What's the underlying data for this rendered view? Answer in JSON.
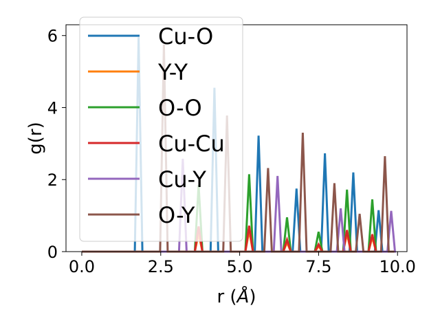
{
  "chart_data": {
    "type": "line",
    "xlabel_main": "r (",
    "xlabel_unit": "Å",
    "xlabel_end": ")",
    "ylabel": "g(r)",
    "xlim": [
      -0.5,
      10.3
    ],
    "ylim": [
      0,
      6.3
    ],
    "xticks": [
      0.0,
      2.5,
      5.0,
      7.5,
      10.0
    ],
    "xtick_labels": [
      "0.0",
      "2.5",
      "5.0",
      "7.5",
      "10.0"
    ],
    "yticks": [
      0,
      2,
      4,
      6
    ],
    "ytick_labels": [
      "0",
      "2",
      "4",
      "6"
    ],
    "legend_position": "upper-left",
    "peak_halfwidth": 0.12,
    "x_end": 9.9,
    "series": [
      {
        "name": "Cu-O",
        "color": "#1f77b4",
        "peaks": [
          [
            1.8,
            5.95
          ],
          [
            4.2,
            4.55
          ],
          [
            5.6,
            3.22
          ],
          [
            6.8,
            1.75
          ],
          [
            7.7,
            2.73
          ],
          [
            8.6,
            2.2
          ],
          [
            9.4,
            1.15
          ]
        ]
      },
      {
        "name": "Y-Y",
        "color": "#ff7f0e",
        "peaks": [
          [
            3.7,
            0.5
          ],
          [
            5.3,
            0.58
          ],
          [
            6.5,
            0.25
          ],
          [
            7.5,
            0.15
          ],
          [
            8.4,
            0.5
          ],
          [
            9.2,
            0.4
          ]
        ]
      },
      {
        "name": "O-O",
        "color": "#2ca02c",
        "peaks": [
          [
            3.7,
            1.85
          ],
          [
            5.3,
            2.15
          ],
          [
            6.5,
            0.95
          ],
          [
            7.5,
            0.55
          ],
          [
            8.4,
            1.72
          ],
          [
            9.2,
            1.45
          ]
        ]
      },
      {
        "name": "Cu-Cu",
        "color": "#d62728",
        "peaks": [
          [
            3.7,
            0.7
          ],
          [
            5.3,
            0.72
          ],
          [
            6.5,
            0.33
          ],
          [
            7.5,
            0.2
          ],
          [
            8.4,
            0.6
          ],
          [
            9.2,
            0.48
          ]
        ]
      },
      {
        "name": "Cu-Y",
        "color": "#9467bd",
        "peaks": [
          [
            3.2,
            2.58
          ],
          [
            6.2,
            2.1
          ],
          [
            8.2,
            1.2
          ],
          [
            9.8,
            1.13
          ]
        ]
      },
      {
        "name": "O-Y",
        "color": "#8c564b",
        "peaks": [
          [
            2.6,
            5.75
          ],
          [
            4.6,
            3.78
          ],
          [
            5.9,
            2.32
          ],
          [
            7.0,
            3.3
          ],
          [
            8.0,
            1.9
          ],
          [
            8.8,
            1.05
          ],
          [
            9.6,
            2.65
          ]
        ]
      }
    ]
  }
}
